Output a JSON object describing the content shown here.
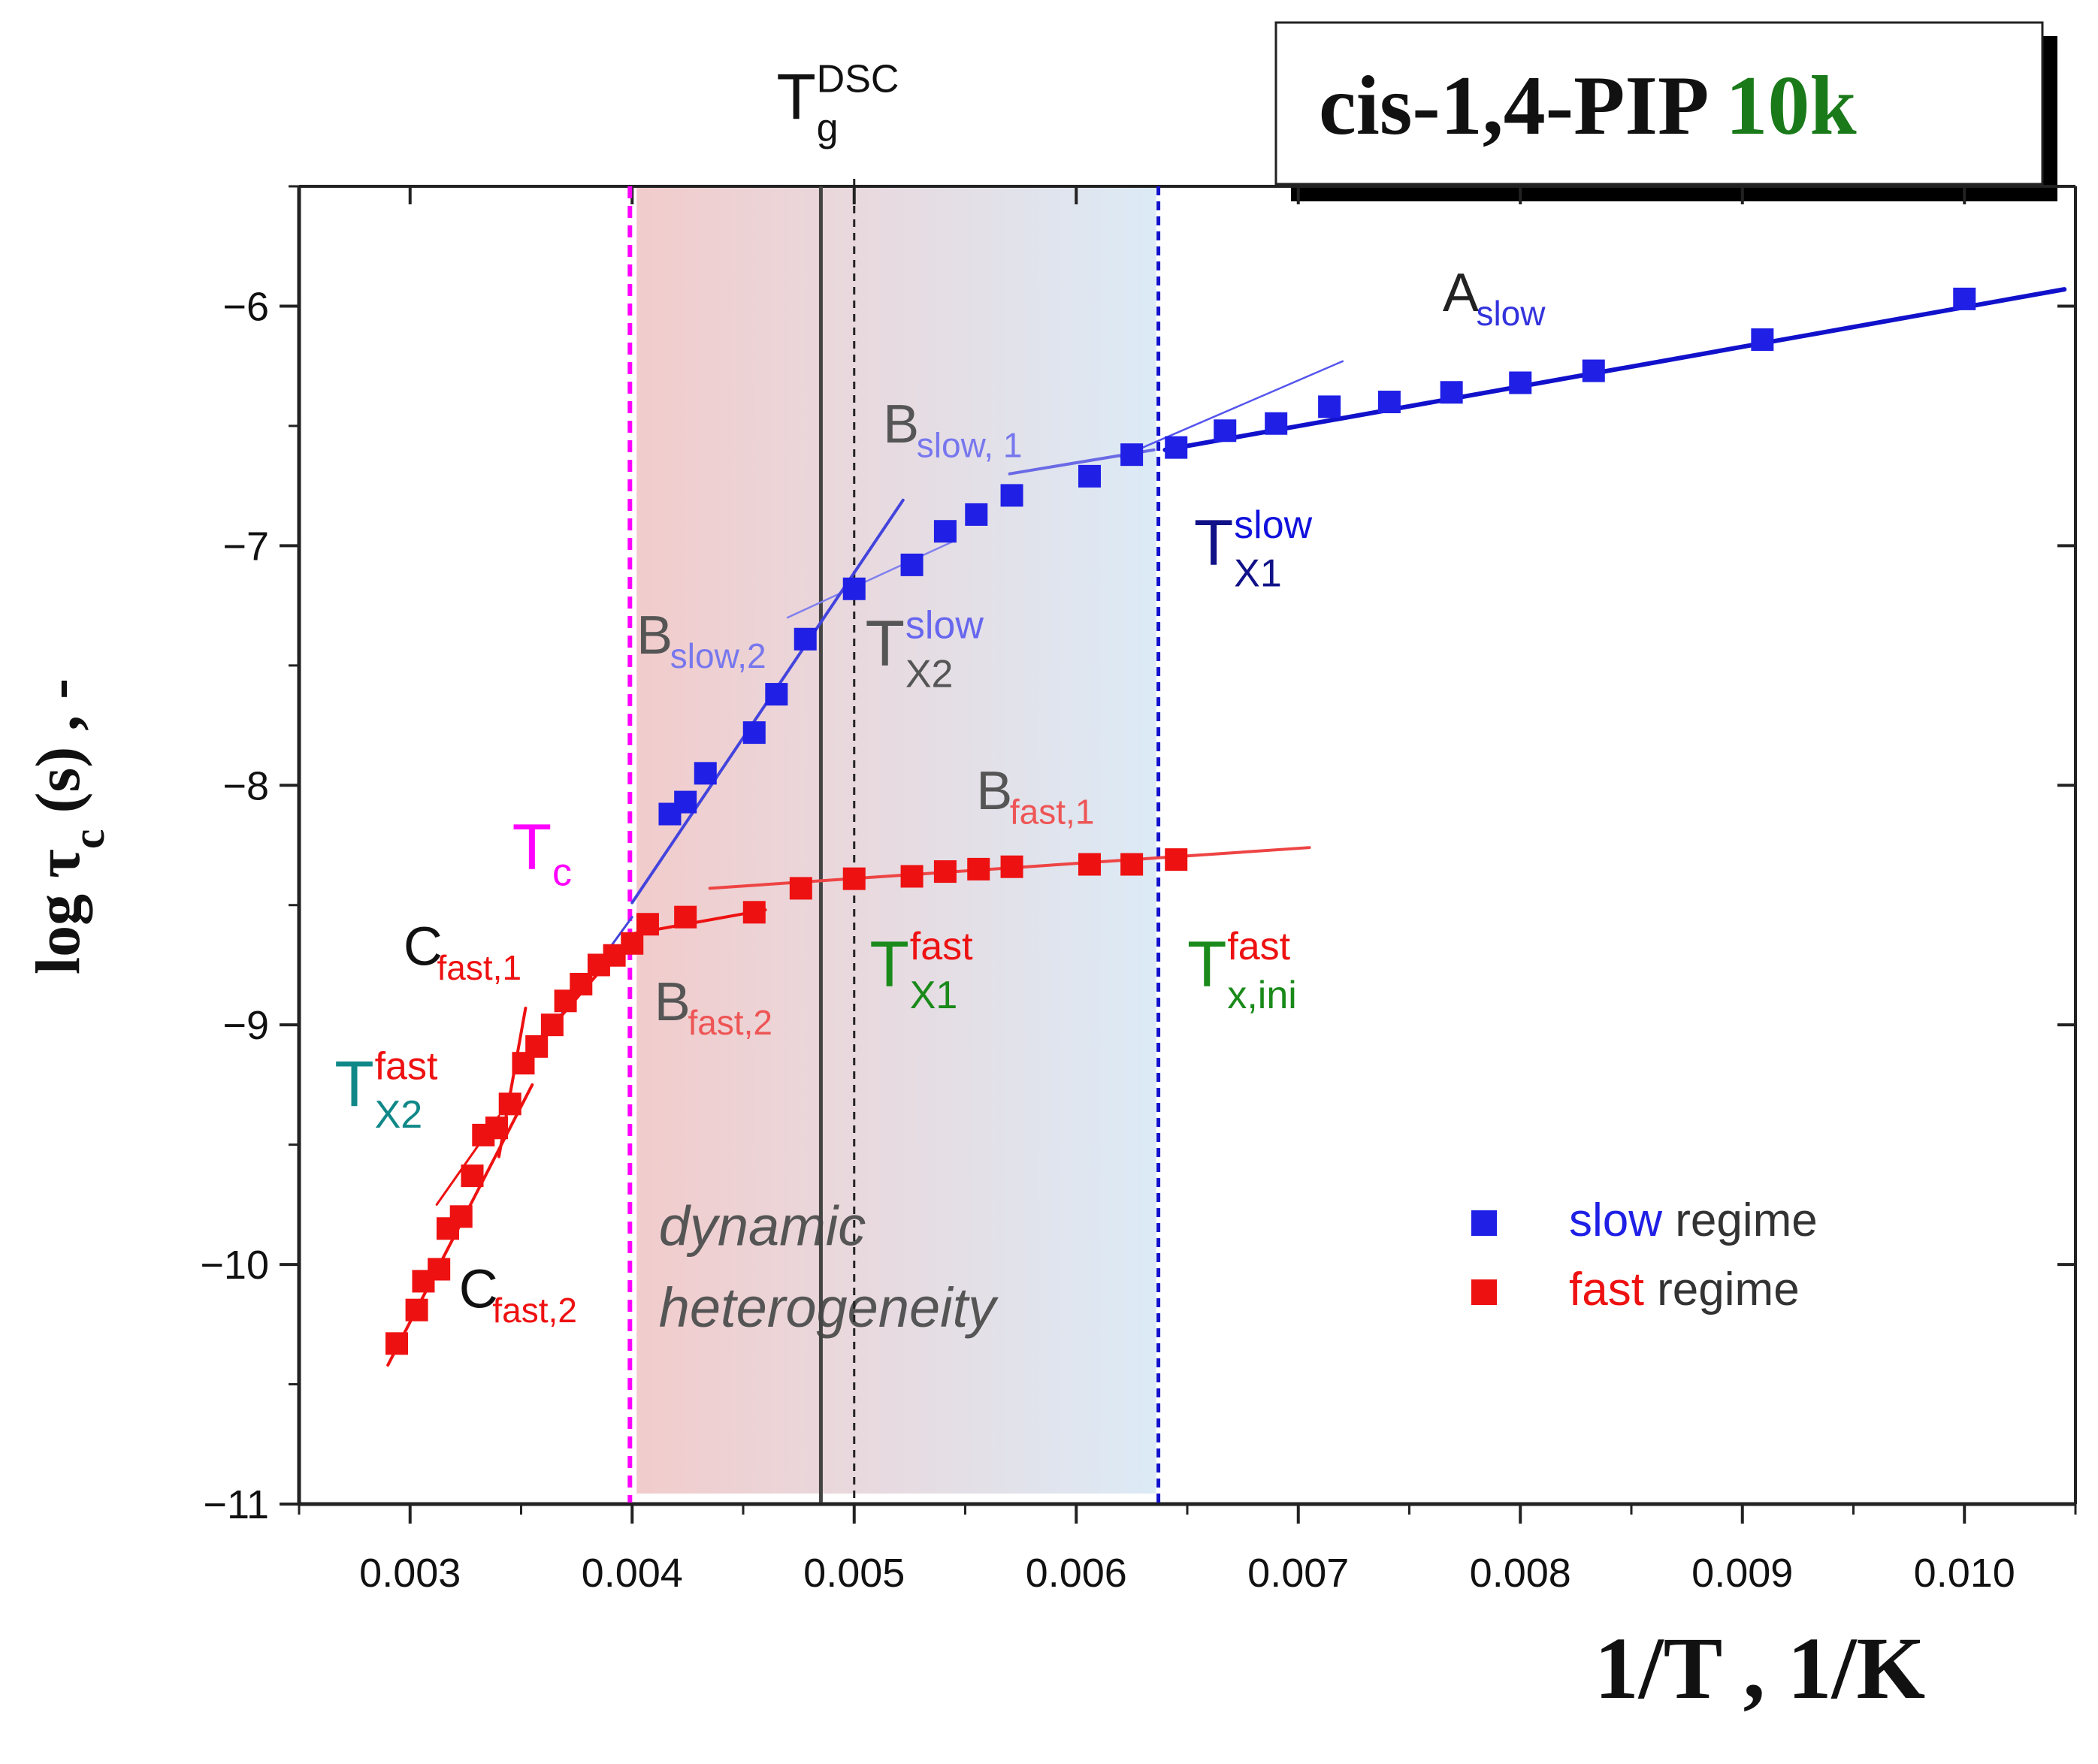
{
  "title_box": {
    "name": "cis-1,4-PIP",
    "mw": "10k",
    "name_color": "#111111",
    "mw_color": "#1a7a1a"
  },
  "chart_data": {
    "type": "scatter",
    "xlabel": "1/T , 1/K",
    "ylabel": {
      "prefix": "log ",
      "tau": "τ",
      "sub": "c",
      "suffix": " (s) , -"
    },
    "xlim": [
      0.0025,
      0.0105
    ],
    "ylim": [
      -11,
      -5.5
    ],
    "x_ticks": [
      0.003,
      0.004,
      0.005,
      0.006,
      0.007,
      0.008,
      0.009,
      0.01
    ],
    "x_tick_labels": [
      "0.003",
      "0.004",
      "0.005",
      "0.006",
      "0.007",
      "0.008",
      "0.009",
      "0.010"
    ],
    "y_ticks": [
      -6,
      -7,
      -8,
      -9,
      -10,
      -11
    ],
    "y_tick_labels": [
      "−6",
      "−7",
      "−8",
      "−9",
      "−10",
      "−11"
    ],
    "grid": false,
    "legend_placement": "bottom-right",
    "series": [
      {
        "name": "slow",
        "legend_suffix": " regime",
        "color": "#1f1fe6",
        "x": [
          0.00417,
          0.00424,
          0.00433,
          0.00455,
          0.00465,
          0.00478,
          0.005,
          0.00526,
          0.00541,
          0.00555,
          0.00571,
          0.00606,
          0.00625,
          0.00645,
          0.00667,
          0.0069,
          0.00714,
          0.00741,
          0.00769,
          0.008,
          0.00833,
          0.00909,
          0.01
        ],
        "y": [
          -8.12,
          -8.07,
          -7.95,
          -7.78,
          -7.62,
          -7.39,
          -7.18,
          -7.08,
          -6.94,
          -6.87,
          -6.79,
          -6.71,
          -6.62,
          -6.59,
          -6.52,
          -6.49,
          -6.42,
          -6.4,
          -6.36,
          -6.32,
          -6.27,
          -6.14,
          -5.97
        ]
      },
      {
        "name": "fast",
        "legend_suffix": " regime",
        "color": "#ee1111",
        "x": [
          0.00294,
          0.00303,
          0.00306,
          0.00313,
          0.00317,
          0.00323,
          0.00328,
          0.00333,
          0.00339,
          0.00345,
          0.00351,
          0.00357,
          0.00364,
          0.0037,
          0.00377,
          0.00385,
          0.00392,
          0.004,
          0.00407,
          0.00424,
          0.00455,
          0.00476,
          0.005,
          0.00526,
          0.00541,
          0.00556,
          0.00571,
          0.00606,
          0.00625,
          0.00645
        ],
        "y": [
          -10.33,
          -10.19,
          -10.07,
          -10.02,
          -9.85,
          -9.8,
          -9.63,
          -9.46,
          -9.43,
          -9.33,
          -9.16,
          -9.09,
          -9.0,
          -8.9,
          -8.83,
          -8.75,
          -8.71,
          -8.66,
          -8.58,
          -8.55,
          -8.53,
          -8.43,
          -8.39,
          -8.38,
          -8.36,
          -8.35,
          -8.34,
          -8.33,
          -8.33,
          -8.31
        ]
      }
    ],
    "fit_lines": [
      {
        "id": "A-slow",
        "color": "#1111cc",
        "width": 6,
        "x": [
          0.0064,
          0.01045
        ],
        "y": [
          -6.6,
          -5.93
        ]
      },
      {
        "id": "A-slow-ext",
        "color": "#5555ee",
        "width": 2.5,
        "x": [
          0.0062,
          0.0072
        ],
        "y": [
          -6.63,
          -6.23
        ]
      },
      {
        "id": "B-slow-1",
        "color": "#6a6ae6",
        "width": 4,
        "x": [
          0.0057,
          0.00635
        ],
        "y": [
          -6.7,
          -6.6
        ]
      },
      {
        "id": "B-slow-1-ext",
        "color": "#8080ee",
        "width": 2.5,
        "x": [
          0.0047,
          0.00545
        ],
        "y": [
          -7.3,
          -6.98
        ]
      },
      {
        "id": "B-slow-2",
        "color": "#4444dd",
        "width": 4,
        "x": [
          0.004,
          0.00522
        ],
        "y": [
          -8.49,
          -6.81
        ]
      },
      {
        "id": "B-fast-1",
        "color": "#ee4444",
        "width": 4,
        "x": [
          0.00435,
          0.00705
        ],
        "y": [
          -8.43,
          -8.26
        ]
      },
      {
        "id": "B-fast-2",
        "color": "#ee1111",
        "width": 4,
        "x": [
          0.004,
          0.0046
        ],
        "y": [
          -8.62,
          -8.52
        ]
      },
      {
        "id": "C-fast-1",
        "color": "#4444dd",
        "width": 3,
        "x": [
          0.0036,
          0.004
        ],
        "y": [
          -9.06,
          -8.55
        ]
      },
      {
        "id": "C-fast-1-red",
        "color": "#ee1111",
        "width": 4,
        "x": [
          0.0036,
          0.004
        ],
        "y": [
          -9.05,
          -8.62
        ]
      },
      {
        "id": "C-fast-steep",
        "color": "#ee1111",
        "width": 4,
        "x": [
          0.0034,
          0.00352
        ],
        "y": [
          -9.55,
          -8.93
        ]
      },
      {
        "id": "C-fast-2",
        "color": "#ee1111",
        "width": 4,
        "x": [
          0.0029,
          0.00355
        ],
        "y": [
          -10.42,
          -9.25
        ]
      },
      {
        "id": "C-fast-2-ext",
        "color": "#ee1111",
        "width": 3,
        "x": [
          0.00312,
          0.0034
        ],
        "y": [
          -9.75,
          -9.38
        ]
      }
    ],
    "vertical_lines": [
      {
        "id": "Tc",
        "x": 0.00399,
        "color": "#ff00ff",
        "width": 6,
        "dash": "16,10"
      },
      {
        "id": "Tg-DSC",
        "x": 0.005,
        "color": "#222222",
        "width": 3,
        "dash": "10,8"
      },
      {
        "id": "solid",
        "x": 0.00485,
        "color": "#444444",
        "width": 5,
        "dash": ""
      },
      {
        "id": "Tx-slow",
        "x": 0.00637,
        "color": "#1111cc",
        "width": 5,
        "dash": "12,8"
      }
    ],
    "region": {
      "x": [
        0.00402,
        0.00636
      ],
      "y": [
        -11,
        -5.5
      ],
      "label_line1": "dynamic",
      "label_line2": "heterogeneity",
      "color_left": "#f0c6c6",
      "color_right": "#d8e8f5"
    },
    "annotations": [
      {
        "id": "a-slow",
        "main": "A",
        "sub": "slow",
        "sup": "",
        "x": 0.00765,
        "y": -6.02,
        "main_color": "#222222",
        "sub_color": "#3333dd",
        "sup_color": ""
      },
      {
        "id": "b-slow-1",
        "main": "B",
        "sub": "slow, 1",
        "sup": "",
        "x": 0.00513,
        "y": -6.57,
        "main_color": "#555555",
        "sub_color": "#7777ee",
        "sup_color": ""
      },
      {
        "id": "b-slow-2",
        "main": "B",
        "sub": "slow,2",
        "sup": "",
        "x": 0.00402,
        "y": -7.45,
        "main_color": "#555555",
        "sub_color": "#7777ee",
        "sup_color": ""
      },
      {
        "id": "t-x2-slow",
        "main": "T",
        "sub": "X2",
        "sup": "slow",
        "x": 0.00505,
        "y": -7.5,
        "main_color": "#555555",
        "sub_color": "#555555",
        "sup_color": "#6666ee"
      },
      {
        "id": "t-x1-slow",
        "main": "T",
        "sub": "X1",
        "sup": "slow",
        "x": 0.00653,
        "y": -7.08,
        "main_color": "#111188",
        "sub_color": "#111188",
        "sup_color": "#1111dd"
      },
      {
        "id": "b-fast-1",
        "main": "B",
        "sub": "fast,1",
        "sup": "",
        "x": 0.00555,
        "y": -8.1,
        "main_color": "#555555",
        "sub_color": "#ee5555",
        "sup_color": ""
      },
      {
        "id": "t-c",
        "main": "T",
        "sub": "c",
        "sup": "",
        "x": 0.00346,
        "y": -8.35,
        "main_color": "#ff00ff",
        "sub_color": "#ff00ff",
        "sup_color": ""
      },
      {
        "id": "c-fast-1",
        "main": "C",
        "sub": "fast,1",
        "sup": "",
        "x": 0.00297,
        "y": -8.75,
        "main_color": "#111111",
        "sub_color": "#ee1111",
        "sup_color": ""
      },
      {
        "id": "b-fast-2",
        "main": "B",
        "sub": "fast,2",
        "sup": "",
        "x": 0.0041,
        "y": -8.98,
        "main_color": "#555555",
        "sub_color": "#ee5555",
        "sup_color": ""
      },
      {
        "id": "t-x1-fast",
        "main": "T",
        "sub": "X1",
        "sup": "fast",
        "x": 0.00507,
        "y": -8.84,
        "main_color": "#1a8a1a",
        "sub_color": "#1a8a1a",
        "sup_color": "#ee1111"
      },
      {
        "id": "t-xini-fast",
        "main": "T",
        "sub": "x,ini",
        "sup": "fast",
        "x": 0.0065,
        "y": -8.84,
        "main_color": "#1a8a1a",
        "sub_color": "#1a8a1a",
        "sup_color": "#ee1111"
      },
      {
        "id": "t-x2-fast",
        "main": "T",
        "sub": "X2",
        "sup": "fast",
        "x": 0.00266,
        "y": -9.34,
        "main_color": "#118888",
        "sub_color": "#118888",
        "sup_color": "#ee1111"
      },
      {
        "id": "c-fast-2",
        "main": "C",
        "sub": "fast,2",
        "sup": "",
        "x": 0.00322,
        "y": -10.18,
        "main_color": "#111111",
        "sub_color": "#ee1111",
        "sup_color": ""
      },
      {
        "id": "t-g-dsc",
        "main": "T",
        "sub": "g",
        "sup": "DSC",
        "x": 0.00465,
        "y": -5.22,
        "main_color": "#111111",
        "sub_color": "#111111",
        "sup_color": "#111111"
      }
    ]
  }
}
